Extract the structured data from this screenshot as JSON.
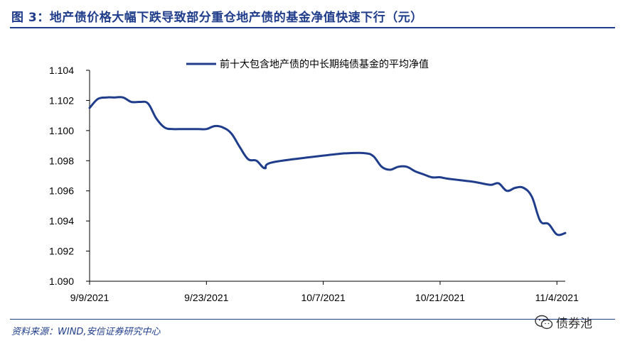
{
  "figure": {
    "title": "图 3：地产债价格大幅下跌导致部分重仓地产债的基金净值快速下行（元）",
    "source": "资料来源：WIND,安信证券研究中心",
    "watermark": "债券池"
  },
  "colors": {
    "line": "#1f3d8a",
    "heading": "#1f3d8a",
    "axis": "#000000"
  },
  "chart_data": {
    "type": "line",
    "legend": "top-center",
    "grid": false,
    "ylim": [
      1.09,
      1.104
    ],
    "yticks": [
      "1.090",
      "1.092",
      "1.094",
      "1.096",
      "1.098",
      "1.100",
      "1.102",
      "1.104"
    ],
    "xticks": [
      "9/9/2021",
      "9/23/2021",
      "10/7/2021",
      "10/21/2021",
      "11/4/2021"
    ],
    "xlim": [
      "2021-09-09",
      "2021-11-05"
    ],
    "series": [
      {
        "name": "前十大包含地产债的中长期纯债基金的平均净值",
        "x": [
          "2021-09-09",
          "2021-09-10",
          "2021-09-11",
          "2021-09-12",
          "2021-09-13",
          "2021-09-14",
          "2021-09-15",
          "2021-09-16",
          "2021-09-17",
          "2021-09-18",
          "2021-09-19",
          "2021-09-20",
          "2021-09-21",
          "2021-09-22",
          "2021-09-23",
          "2021-09-24",
          "2021-09-25",
          "2021-09-26",
          "2021-09-27",
          "2021-09-28",
          "2021-09-29",
          "2021-09-30",
          "2021-10-01",
          "2021-10-08",
          "2021-10-10",
          "2021-10-12",
          "2021-10-13",
          "2021-10-14",
          "2021-10-15",
          "2021-10-16",
          "2021-10-17",
          "2021-10-18",
          "2021-10-19",
          "2021-10-20",
          "2021-10-21",
          "2021-10-22",
          "2021-10-25",
          "2021-10-27",
          "2021-10-28",
          "2021-10-29",
          "2021-10-30",
          "2021-10-31",
          "2021-11-01",
          "2021-11-02",
          "2021-11-03",
          "2021-11-04",
          "2021-11-05"
        ],
        "y": [
          1.1015,
          1.1021,
          1.1022,
          1.1022,
          1.1022,
          1.1019,
          1.1019,
          1.1018,
          1.1008,
          1.1002,
          1.1001,
          1.1001,
          1.1001,
          1.1001,
          1.1001,
          1.1003,
          1.1002,
          1.0998,
          1.0989,
          1.0981,
          1.098,
          1.0975,
          1.0979,
          1.0984,
          1.0985,
          1.0985,
          1.0983,
          1.0976,
          1.0974,
          1.0976,
          1.0976,
          1.0973,
          1.0971,
          1.0969,
          1.0969,
          1.0968,
          1.0966,
          1.0964,
          1.0965,
          1.096,
          1.0962,
          1.0962,
          1.0956,
          1.094,
          1.0938,
          1.0931,
          1.0932
        ]
      }
    ]
  }
}
